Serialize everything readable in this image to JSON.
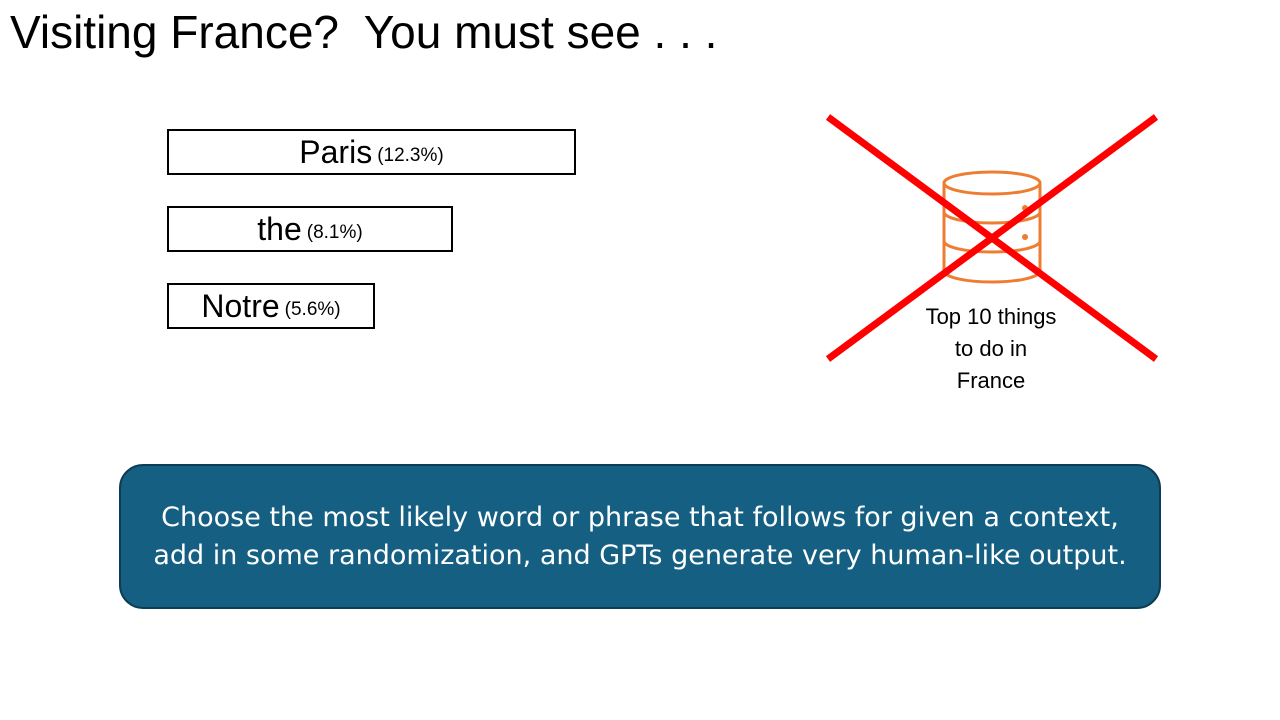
{
  "title": "Visiting France?  You must see . . .",
  "tokens": [
    {
      "word": "Paris",
      "prob": "(12.3%)"
    },
    {
      "word": "the",
      "prob": "(8.1%)"
    },
    {
      "word": "Notre",
      "prob": "(5.6%)"
    }
  ],
  "database": {
    "icon": "database-icon",
    "caption": "Top 10 things\nto do in\nFrance",
    "icon_color": "#ed7d31",
    "cross_color": "#ff0000"
  },
  "callout": {
    "text": "Choose the most likely word or phrase that follows for given a context,\nadd in some randomization, and GPTs generate very human-like output.",
    "background": "#145f82"
  }
}
